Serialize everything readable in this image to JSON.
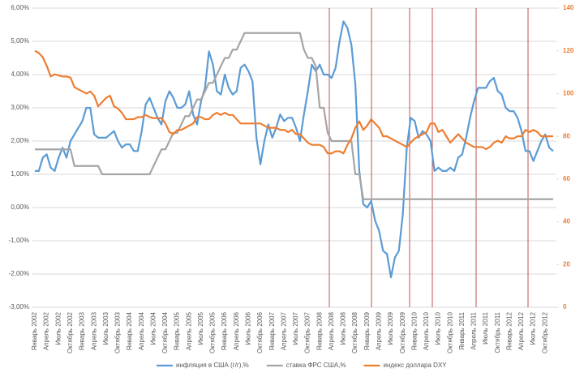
{
  "chart_data": {
    "type": "line",
    "categories": [
      "Январь 2002",
      null,
      null,
      "Апрель 2002",
      null,
      null,
      "Июль 2002",
      null,
      null,
      "Октябрь 2002",
      null,
      null,
      "Январь 2003",
      null,
      null,
      "Апрель 2003",
      null,
      null,
      "Июль 2003",
      null,
      null,
      "Октябрь 2003",
      null,
      null,
      "Январь 2004",
      null,
      null,
      "Апрель 2004",
      null,
      null,
      "Июль 2004",
      null,
      null,
      "Октябрь 2004",
      null,
      null,
      "Январь 2005",
      null,
      null,
      "Апрель 2005",
      null,
      null,
      "Июль 2005",
      null,
      null,
      "Октябрь 2005",
      null,
      null,
      "Январь 2006",
      null,
      null,
      "Апрель 2006",
      null,
      null,
      "Июль 2006",
      null,
      null,
      "Октябрь 2006",
      null,
      null,
      "Январь 2007",
      null,
      null,
      "Апрель 2007",
      null,
      null,
      "Июль 2007",
      null,
      null,
      "Октябрь 2007",
      null,
      null,
      "Январь 2008",
      null,
      null,
      "Апрель 2008",
      null,
      null,
      "Июль 2008",
      null,
      null,
      "Октябрь 2008",
      null,
      null,
      "Январь 2009",
      null,
      null,
      "Апрель 2009",
      null,
      null,
      "Июль 2009",
      null,
      null,
      "Октябрь 2009",
      null,
      null,
      "Январь 2010",
      null,
      null,
      "Апрель 2010",
      null,
      null,
      "Июль 2010",
      null,
      null,
      "Октябрь 2010",
      null,
      null,
      "Январь 2011",
      null,
      null,
      "Апрель 2011",
      null,
      null,
      "Июль 2011",
      null,
      null,
      "Октябрь 2011",
      null,
      null,
      "Январь 2012",
      null,
      null,
      "Апрель 2012",
      null,
      null,
      "Июль 2012",
      null,
      null,
      "Октябрь 2012",
      null,
      null
    ],
    "series": [
      {
        "name": "инфляция в США (г/г),%",
        "color": "#5b9bd5",
        "values": [
          1.1,
          1.1,
          1.5,
          1.6,
          1.2,
          1.1,
          1.5,
          1.8,
          1.5,
          2.0,
          2.2,
          2.4,
          2.6,
          3.0,
          3.0,
          2.2,
          2.1,
          2.1,
          2.1,
          2.2,
          2.3,
          2.0,
          1.8,
          1.9,
          1.9,
          1.7,
          1.7,
          2.3,
          3.1,
          3.3,
          3.0,
          2.7,
          2.5,
          3.2,
          3.5,
          3.3,
          3.0,
          3.0,
          3.1,
          3.5,
          2.8,
          2.5,
          3.2,
          3.6,
          4.7,
          4.3,
          3.5,
          3.4,
          4.0,
          3.6,
          3.4,
          3.5,
          4.2,
          4.3,
          4.1,
          3.8,
          2.1,
          1.3,
          2.0,
          2.5,
          2.1,
          2.4,
          2.8,
          2.6,
          2.7,
          2.7,
          2.4,
          2.0,
          2.8,
          3.5,
          4.3,
          4.1,
          4.3,
          4.0,
          4.0,
          3.9,
          4.2,
          5.0,
          5.6,
          5.4,
          4.9,
          3.7,
          1.1,
          0.1,
          0.0,
          0.2,
          -0.4,
          -0.7,
          -1.3,
          -1.4,
          -2.1,
          -1.5,
          -1.3,
          -0.2,
          1.8,
          2.7,
          2.6,
          2.1,
          2.3,
          2.2,
          2.0,
          1.1,
          1.2,
          1.1,
          1.1,
          1.2,
          1.1,
          1.5,
          1.6,
          2.1,
          2.7,
          3.2,
          3.6,
          3.6,
          3.6,
          3.8,
          3.9,
          3.5,
          3.4,
          3.0,
          2.9,
          2.9,
          2.7,
          2.3,
          1.7,
          1.7,
          1.4,
          1.7,
          2.0,
          2.2,
          1.8,
          1.7
        ]
      },
      {
        "name": "ставка ФРС США,%",
        "color": "#a5a5a5",
        "values": [
          1.75,
          1.75,
          1.75,
          1.75,
          1.75,
          1.75,
          1.75,
          1.75,
          1.75,
          1.75,
          1.25,
          1.25,
          1.25,
          1.25,
          1.25,
          1.25,
          1.25,
          1.0,
          1.0,
          1.0,
          1.0,
          1.0,
          1.0,
          1.0,
          1.0,
          1.0,
          1.0,
          1.0,
          1.0,
          1.0,
          1.25,
          1.5,
          1.75,
          1.75,
          2.0,
          2.25,
          2.25,
          2.5,
          2.75,
          2.75,
          3.0,
          3.25,
          3.25,
          3.5,
          3.75,
          3.75,
          4.0,
          4.25,
          4.5,
          4.5,
          4.75,
          4.75,
          5.0,
          5.25,
          5.25,
          5.25,
          5.25,
          5.25,
          5.25,
          5.25,
          5.25,
          5.25,
          5.25,
          5.25,
          5.25,
          5.25,
          5.25,
          5.25,
          4.75,
          4.5,
          4.5,
          4.25,
          3.0,
          3.0,
          2.25,
          2.0,
          2.0,
          2.0,
          2.0,
          2.0,
          2.0,
          1.0,
          1.0,
          0.25,
          0.25,
          0.25,
          0.25,
          0.25,
          0.25,
          0.25,
          0.25,
          0.25,
          0.25,
          0.25,
          0.25,
          0.25,
          0.25,
          0.25,
          0.25,
          0.25,
          0.25,
          0.25,
          0.25,
          0.25,
          0.25,
          0.25,
          0.25,
          0.25,
          0.25,
          0.25,
          0.25,
          0.25,
          0.25,
          0.25,
          0.25,
          0.25,
          0.25,
          0.25,
          0.25,
          0.25,
          0.25,
          0.25,
          0.25,
          0.25,
          0.25,
          0.25,
          0.25,
          0.25,
          0.25,
          0.25,
          0.25,
          0.25
        ]
      },
      {
        "name": "индекс доллара DXY",
        "color": "#ed7d31",
        "axis": "y2",
        "values": [
          120,
          119,
          117,
          113,
          108,
          109,
          108.5,
          108,
          108,
          107.5,
          103,
          102,
          101,
          100,
          101,
          99,
          94,
          96,
          98,
          99,
          94,
          93,
          91,
          88,
          88,
          88,
          89,
          89,
          90,
          89,
          88.5,
          88.5,
          88.5,
          86,
          82,
          81,
          83,
          83,
          84,
          85,
          86,
          89,
          89,
          88,
          88,
          90,
          91,
          90,
          91,
          90,
          90,
          88,
          86,
          86,
          86,
          86,
          86,
          86,
          85,
          84,
          84,
          84,
          83,
          83,
          82,
          83,
          81,
          81,
          79,
          77,
          76,
          76,
          76,
          75,
          72,
          72,
          73,
          73,
          72,
          76,
          79,
          84,
          87,
          83,
          85,
          88,
          86,
          84,
          80,
          80,
          79,
          78,
          77,
          76,
          75,
          77,
          79,
          80,
          81,
          82,
          86,
          86,
          82,
          83,
          80,
          77,
          79,
          81,
          79,
          77,
          76,
          75,
          75,
          75,
          74,
          75,
          77,
          78,
          77,
          80,
          79,
          79,
          80,
          80,
          83,
          82,
          83,
          82,
          80,
          80,
          80,
          80
        ]
      }
    ],
    "ylim": [
      -3,
      6
    ],
    "yticks": [
      {
        "value": -3,
        "label": "-3,00%"
      },
      {
        "value": -2,
        "label": "-2,00%"
      },
      {
        "value": -1,
        "label": "-1,00%"
      },
      {
        "value": 0,
        "label": "0,00%"
      },
      {
        "value": 1,
        "label": "1,00%"
      },
      {
        "value": 2,
        "label": "2,00%"
      },
      {
        "value": 3,
        "label": "3,00%"
      },
      {
        "value": 4,
        "label": "4,00%"
      },
      {
        "value": 5,
        "label": "5,00%"
      },
      {
        "value": 6,
        "label": "6,00%"
      }
    ],
    "y2lim": [
      0,
      140
    ],
    "y2ticks": [
      0,
      20,
      40,
      60,
      80,
      100,
      120,
      140
    ],
    "grid": true
  }
}
